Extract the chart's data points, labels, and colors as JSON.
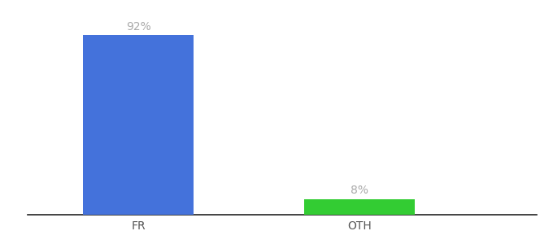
{
  "categories": [
    "FR",
    "OTH"
  ],
  "values": [
    92,
    8
  ],
  "bar_colors": [
    "#4472db",
    "#33cc33"
  ],
  "label_texts": [
    "92%",
    "8%"
  ],
  "background_color": "#ffffff",
  "ylim": [
    0,
    100
  ],
  "bar_width": 0.5,
  "label_fontsize": 10,
  "tick_fontsize": 10,
  "label_color": "#aaaaaa",
  "axis_line_color": "#222222",
  "x_positions": [
    1,
    2
  ],
  "xlim": [
    0.5,
    2.8
  ]
}
